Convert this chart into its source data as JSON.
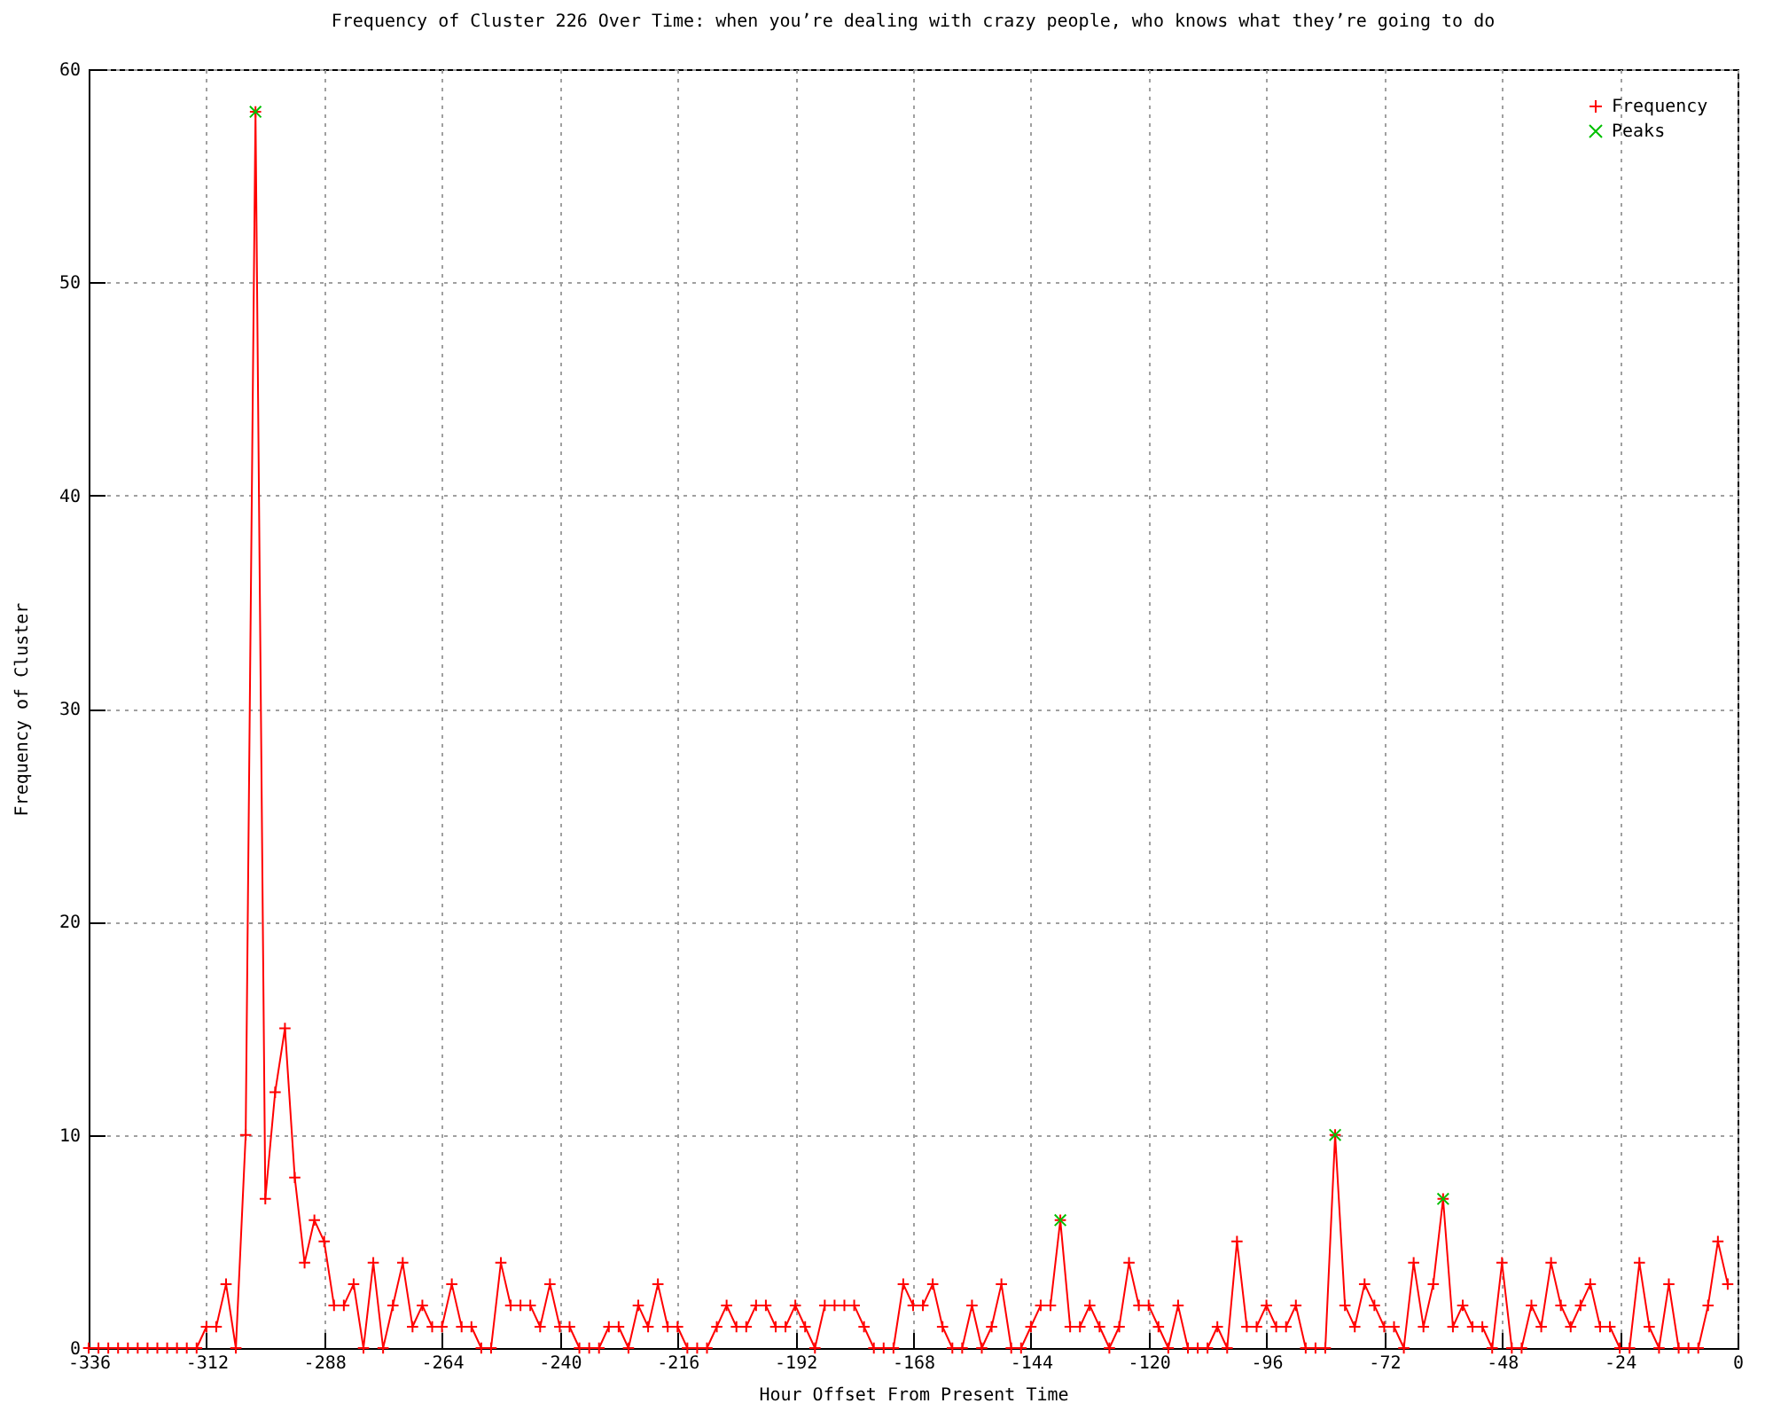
{
  "chart_data": {
    "type": "line",
    "title": "Frequency of Cluster 226 Over Time: when you’re dealing with crazy people, who knows what they’re going to do",
    "xlabel": "Hour Offset From Present Time",
    "ylabel": "Frequency of Cluster",
    "x": [
      -336,
      -334,
      -332,
      -330,
      -328,
      -326,
      -324,
      -322,
      -320,
      -318,
      -316,
      -314,
      -312,
      -310,
      -308,
      -306,
      -304,
      -302,
      -300,
      -298,
      -296,
      -294,
      -292,
      -290,
      -288,
      -286,
      -284,
      -282,
      -280,
      -278,
      -276,
      -274,
      -272,
      -270,
      -268,
      -266,
      -264,
      -262,
      -260,
      -258,
      -256,
      -254,
      -252,
      -250,
      -248,
      -246,
      -244,
      -242,
      -240,
      -238,
      -236,
      -234,
      -232,
      -230,
      -228,
      -226,
      -224,
      -222,
      -220,
      -218,
      -216,
      -214,
      -212,
      -210,
      -208,
      -206,
      -204,
      -202,
      -200,
      -198,
      -196,
      -194,
      -192,
      -190,
      -188,
      -186,
      -184,
      -182,
      -180,
      -178,
      -176,
      -174,
      -172,
      -170,
      -168,
      -166,
      -164,
      -162,
      -160,
      -158,
      -156,
      -154,
      -152,
      -150,
      -148,
      -146,
      -144,
      -142,
      -140,
      -138,
      -136,
      -134,
      -132,
      -130,
      -128,
      -126,
      -124,
      -122,
      -120,
      -118,
      -116,
      -114,
      -112,
      -110,
      -108,
      -106,
      -104,
      -102,
      -100,
      -98,
      -96,
      -94,
      -92,
      -90,
      -88,
      -86,
      -84,
      -82,
      -80,
      -78,
      -76,
      -74,
      -72,
      -70,
      -68,
      -66,
      -64,
      -62,
      -60,
      -58,
      -56,
      -54,
      -52,
      -50,
      -48,
      -46,
      -44,
      -42,
      -40,
      -38,
      -36,
      -34,
      -32,
      -30,
      -28,
      -26,
      -24,
      -22,
      -20,
      -18,
      -16,
      -14,
      -12,
      -10,
      -8,
      -6,
      -4,
      -2
    ],
    "series": [
      {
        "name": "Frequency",
        "color": "#ff0000",
        "values": [
          0,
          0,
          0,
          0,
          0,
          0,
          0,
          0,
          0,
          0,
          0,
          0,
          1,
          1,
          3,
          0,
          10,
          58,
          7,
          12,
          15,
          8,
          4,
          6,
          5,
          2,
          2,
          3,
          0,
          4,
          0,
          2,
          4,
          1,
          2,
          1,
          1,
          3,
          1,
          1,
          0,
          0,
          4,
          2,
          2,
          2,
          1,
          3,
          1,
          1,
          0,
          0,
          0,
          1,
          1,
          0,
          2,
          1,
          3,
          1,
          1,
          0,
          0,
          0,
          1,
          2,
          1,
          1,
          2,
          2,
          1,
          1,
          2,
          1,
          0,
          2,
          2,
          2,
          2,
          1,
          0,
          0,
          0,
          3,
          2,
          2,
          3,
          1,
          0,
          0,
          2,
          0,
          1,
          3,
          0,
          0,
          1,
          2,
          2,
          6,
          1,
          1,
          2,
          1,
          0,
          1,
          4,
          2,
          2,
          1,
          0,
          2,
          0,
          0,
          0,
          1,
          0,
          5,
          1,
          1,
          2,
          1,
          1,
          2,
          0,
          0,
          0,
          10,
          2,
          1,
          3,
          2,
          1,
          1,
          0,
          4,
          1,
          3,
          7,
          1,
          2,
          1,
          1,
          0,
          4,
          0,
          0,
          2,
          1,
          4,
          2,
          1,
          2,
          3,
          1,
          1,
          0,
          0,
          4,
          1,
          0,
          3,
          0,
          0,
          0,
          2,
          5,
          3
        ]
      },
      {
        "name": "Peaks",
        "type": "scatter",
        "color": "#00c000",
        "x": [
          -302,
          -138,
          -82,
          -60
        ],
        "values": [
          58,
          6,
          10,
          7
        ]
      }
    ],
    "marker": "cross",
    "xlim": [
      -336,
      0
    ],
    "xticks": [
      -336,
      -312,
      -288,
      -264,
      -240,
      -216,
      -192,
      -168,
      -144,
      -120,
      -96,
      -72,
      -48,
      -24,
      0
    ],
    "ylim": [
      0,
      60
    ],
    "yticks": [
      0,
      10,
      20,
      30,
      40,
      50,
      60
    ],
    "grid": true,
    "legend": "top right"
  }
}
